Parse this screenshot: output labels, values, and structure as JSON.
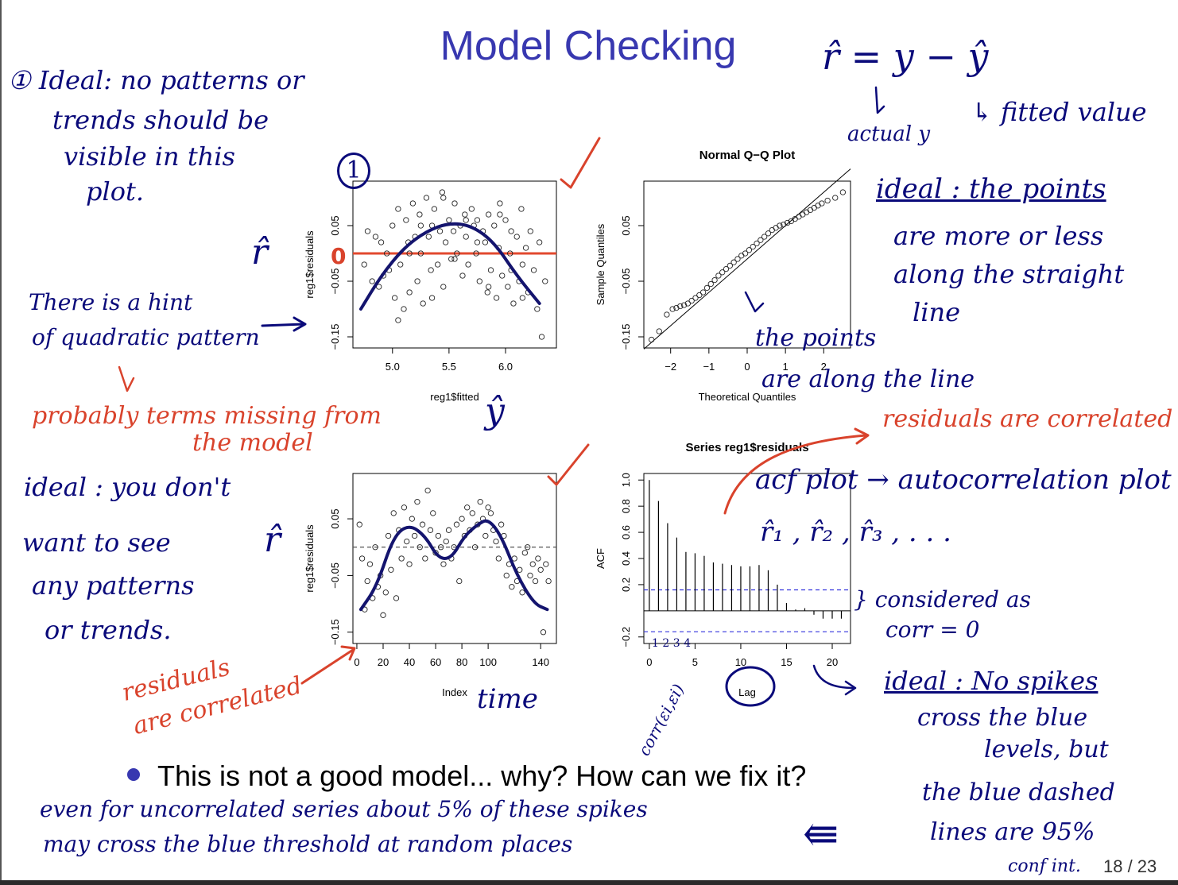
{
  "slide": {
    "title": "Model Checking",
    "bullet": "This is not a good model... why? How can we fix it?",
    "page_number": "18 / 23"
  },
  "annotations": {
    "n1": "① Ideal: no patterns or",
    "n2": "trends should be",
    "n3": "visible in this",
    "n4": "plot.",
    "circled_one": "1",
    "rhat_formula": "r̂ = y − ŷ",
    "fitted_value": "↳ fitted value",
    "actual_y": "actual y",
    "ideal_qq_1": "ideal : the points",
    "ideal_qq_2": "are more or less",
    "ideal_qq_3": "along the straight",
    "ideal_qq_4": "line",
    "rhat1": "r̂",
    "rhat2": "r̂",
    "yhat": "ŷ",
    "zero_label": "0",
    "hint_1": "There is a hint",
    "hint_2": "of quadratic pattern",
    "points_1": "the points",
    "points_2": "are along the line",
    "probably_1": "probably terms missing from",
    "probably_2": "the model",
    "resid_corr_right": "residuals are correlated",
    "ideal_left_1": "ideal : you don't",
    "ideal_left_2": "want to see",
    "ideal_left_3": "any patterns",
    "ideal_left_4": "or trends.",
    "acf_plot": "acf plot → autocorrelation plot",
    "r_seq": "r̂₁ , r̂₂ , r̂₃ , . . .",
    "considered_1": "} considered as",
    "considered_2": "corr = 0",
    "time": "time",
    "resid_corr_left_1": "residuals",
    "resid_corr_left_2": "are correlated",
    "corr_eps": "corr(εi,εi)",
    "lag_small": "1 2 3 4",
    "ideal_acf_1": "ideal : No spikes",
    "ideal_acf_2": "cross the blue",
    "ideal_acf_3": "levels, but",
    "ideal_acf_4": "the blue dashed",
    "ideal_acf_5": "lines are 95%",
    "ideal_acf_6": "conf int.",
    "even_1": "even for uncorrelated series about 5% of these spikes",
    "even_2": "may cross the blue threshold at random places",
    "arrow_left": "⇚"
  },
  "chart_data": [
    {
      "type": "scatter",
      "title": "",
      "xlabel": "reg1$fitted",
      "ylabel": "reg1$residuals",
      "xlim": [
        4.65,
        6.45
      ],
      "ylim": [
        -0.17,
        0.13
      ],
      "xticks": [
        5.0,
        5.5,
        6.0
      ],
      "yticks": [
        -0.15,
        -0.05,
        0.05
      ],
      "xtick_labels": [
        "5.0",
        "5.5",
        "6.0"
      ],
      "ytick_labels": [
        "−0.15",
        "−0.05",
        "0.05"
      ],
      "reference_line": {
        "y": 0,
        "color": "#e2492f"
      },
      "trend_curve": {
        "x": [
          4.72,
          4.9,
          5.1,
          5.3,
          5.5,
          5.7,
          5.9,
          6.1,
          6.3
        ],
        "y": [
          -0.1,
          -0.04,
          0.01,
          0.04,
          0.055,
          0.05,
          0.02,
          -0.04,
          -0.09
        ],
        "color": "#14146e"
      },
      "x": [
        4.75,
        4.78,
        4.82,
        4.85,
        4.88,
        4.9,
        4.92,
        4.95,
        4.97,
        5.0,
        5.02,
        5.05,
        5.07,
        5.1,
        5.12,
        5.14,
        5.15,
        5.18,
        5.2,
        5.22,
        5.24,
        5.25,
        5.27,
        5.3,
        5.32,
        5.34,
        5.35,
        5.37,
        5.4,
        5.42,
        5.44,
        5.45,
        5.47,
        5.5,
        5.52,
        5.54,
        5.55,
        5.57,
        5.6,
        5.62,
        5.64,
        5.65,
        5.67,
        5.7,
        5.72,
        5.74,
        5.75,
        5.77,
        5.8,
        5.82,
        5.84,
        5.85,
        5.87,
        5.9,
        5.92,
        5.94,
        5.95,
        5.97,
        6.0,
        6.02,
        6.04,
        6.05,
        6.07,
        6.1,
        6.12,
        6.14,
        6.15,
        6.18,
        6.2,
        6.22,
        6.25,
        6.28,
        6.3,
        6.32,
        6.35,
        5.05,
        5.15,
        5.25,
        5.35,
        5.45,
        5.55,
        5.65,
        5.75,
        5.85,
        5.95,
        6.05,
        6.15
      ],
      "y": [
        -0.02,
        0.04,
        -0.05,
        0.03,
        -0.06,
        0.02,
        -0.04,
        0.0,
        -0.03,
        0.05,
        -0.08,
        0.08,
        -0.02,
        -0.1,
        0.06,
        0.02,
        -0.07,
        0.09,
        0.03,
        -0.05,
        0.07,
        0.0,
        -0.09,
        0.1,
        0.03,
        -0.03,
        0.05,
        0.08,
        -0.02,
        0.04,
        0.11,
        -0.06,
        0.02,
        0.06,
        -0.01,
        0.04,
        0.09,
        0.0,
        0.05,
        -0.04,
        0.07,
        0.03,
        -0.02,
        0.08,
        0.05,
        0.0,
        0.06,
        -0.05,
        0.04,
        0.02,
        -0.07,
        0.07,
        -0.03,
        0.05,
        -0.08,
        0.01,
        0.09,
        -0.04,
        0.06,
        -0.06,
        0.0,
        0.04,
        -0.09,
        0.03,
        -0.05,
        0.08,
        -0.02,
        0.01,
        -0.07,
        0.04,
        -0.03,
        -0.1,
        0.02,
        -0.15,
        -0.05,
        -0.12,
        0.0,
        0.05,
        -0.08,
        0.1,
        -0.01,
        0.06,
        0.02,
        -0.06,
        0.07,
        -0.03,
        -0.08
      ]
    },
    {
      "type": "scatter",
      "title": "Normal Q−Q Plot",
      "xlabel": "Theoretical Quantiles",
      "ylabel": "Sample Quantiles",
      "xlim": [
        -2.7,
        2.7
      ],
      "ylim": [
        -0.17,
        0.13
      ],
      "xticks": [
        -2,
        -1,
        0,
        1,
        2
      ],
      "yticks": [
        -0.15,
        -0.05,
        0.05
      ],
      "xtick_labels": [
        "−2",
        "−1",
        "0",
        "1",
        "2"
      ],
      "ytick_labels": [
        "−0.15",
        "−0.05",
        "0.05"
      ],
      "reference_line": {
        "x": [
          -2.7,
          2.7
        ],
        "y": [
          -0.172,
          0.152
        ]
      },
      "x": [
        -2.5,
        -2.3,
        -2.1,
        -1.95,
        -1.85,
        -1.75,
        -1.65,
        -1.55,
        -1.45,
        -1.35,
        -1.25,
        -1.15,
        -1.05,
        -0.95,
        -0.85,
        -0.75,
        -0.65,
        -0.55,
        -0.45,
        -0.35,
        -0.25,
        -0.15,
        -0.05,
        0.05,
        0.15,
        0.25,
        0.35,
        0.45,
        0.55,
        0.65,
        0.75,
        0.85,
        0.95,
        1.05,
        1.15,
        1.25,
        1.35,
        1.45,
        1.55,
        1.65,
        1.75,
        1.85,
        1.95,
        2.1,
        2.3,
        2.5
      ],
      "y": [
        -0.155,
        -0.14,
        -0.11,
        -0.1,
        -0.098,
        -0.095,
        -0.093,
        -0.09,
        -0.085,
        -0.08,
        -0.075,
        -0.07,
        -0.062,
        -0.055,
        -0.048,
        -0.04,
        -0.034,
        -0.028,
        -0.022,
        -0.016,
        -0.01,
        -0.004,
        0.0,
        0.006,
        0.012,
        0.018,
        0.024,
        0.03,
        0.036,
        0.042,
        0.046,
        0.05,
        0.052,
        0.055,
        0.058,
        0.062,
        0.066,
        0.07,
        0.074,
        0.078,
        0.082,
        0.086,
        0.09,
        0.095,
        0.1,
        0.11
      ]
    },
    {
      "type": "scatter",
      "title": "",
      "xlabel": "Index",
      "ylabel": "reg1$residuals",
      "xlim": [
        -3,
        152
      ],
      "ylim": [
        -0.17,
        0.13
      ],
      "xticks": [
        0,
        20,
        40,
        60,
        80,
        100,
        140
      ],
      "yticks": [
        -0.15,
        -0.05,
        0.05
      ],
      "xtick_labels": [
        "0",
        "20",
        "40",
        "60",
        "80",
        "100",
        "140"
      ],
      "ytick_labels": [
        "−0.15",
        "−0.05",
        "0.05"
      ],
      "reference_line": {
        "y": 0,
        "dashed": true
      },
      "trend_curve": {
        "x": [
          3,
          15,
          28,
          40,
          52,
          62,
          72,
          82,
          92,
          100,
          110,
          122,
          135,
          145
        ],
        "y": [
          -0.11,
          -0.07,
          0.02,
          0.04,
          0.02,
          -0.02,
          -0.02,
          0.02,
          0.04,
          0.05,
          0.02,
          -0.05,
          -0.1,
          -0.11
        ],
        "color": "#14146e"
      },
      "x": [
        2,
        4,
        6,
        8,
        10,
        12,
        14,
        16,
        18,
        20,
        22,
        24,
        26,
        28,
        30,
        32,
        34,
        36,
        38,
        40,
        42,
        44,
        46,
        48,
        50,
        52,
        54,
        56,
        58,
        60,
        62,
        64,
        66,
        68,
        70,
        72,
        74,
        76,
        78,
        80,
        82,
        84,
        86,
        88,
        90,
        92,
        94,
        96,
        98,
        100,
        102,
        104,
        106,
        108,
        110,
        112,
        114,
        116,
        118,
        120,
        122,
        124,
        126,
        128,
        130,
        132,
        134,
        136,
        138,
        140,
        142,
        144,
        146
      ],
      "y": [
        0.04,
        -0.02,
        -0.11,
        -0.06,
        -0.03,
        -0.09,
        0.0,
        -0.07,
        -0.05,
        -0.12,
        -0.08,
        0.02,
        -0.04,
        0.06,
        -0.09,
        0.03,
        -0.02,
        0.07,
        0.01,
        -0.03,
        0.05,
        0.02,
        0.08,
        0.0,
        0.04,
        -0.02,
        0.1,
        0.03,
        0.06,
        -0.01,
        0.02,
        0.0,
        -0.03,
        0.01,
        0.03,
        -0.02,
        0.0,
        0.04,
        -0.06,
        0.05,
        0.02,
        0.07,
        0.03,
        0.06,
        0.0,
        0.04,
        0.08,
        0.05,
        0.02,
        0.07,
        0.06,
        0.03,
        0.01,
        -0.02,
        0.04,
        0.02,
        -0.05,
        -0.03,
        -0.07,
        -0.02,
        -0.06,
        -0.04,
        -0.08,
        -0.01,
        0.0,
        -0.05,
        -0.03,
        -0.06,
        -0.02,
        -0.04,
        -0.15,
        -0.03,
        -0.06
      ]
    },
    {
      "type": "bar",
      "title": "Series  reg1$residuals",
      "xlabel": "Lag",
      "ylabel": "ACF",
      "xlim": [
        -0.6,
        22
      ],
      "ylim": [
        -0.25,
        1.05
      ],
      "xticks": [
        0,
        5,
        10,
        15,
        20
      ],
      "yticks": [
        -0.2,
        0.2,
        0.4,
        0.6,
        0.8,
        1.0
      ],
      "xtick_labels": [
        "0",
        "5",
        "10",
        "15",
        "20"
      ],
      "ytick_labels": [
        "−0.2",
        "0.2",
        "0.4",
        "0.6",
        "0.8",
        "1.0"
      ],
      "ci_lines": {
        "upper": 0.16,
        "lower": -0.16,
        "color": "#3333dd"
      },
      "x": [
        0,
        1,
        2,
        3,
        4,
        5,
        6,
        7,
        8,
        9,
        10,
        11,
        12,
        13,
        14,
        15,
        16,
        17,
        18,
        19,
        20,
        21
      ],
      "values": [
        1.0,
        0.84,
        0.67,
        0.56,
        0.45,
        0.44,
        0.42,
        0.37,
        0.36,
        0.35,
        0.34,
        0.34,
        0.35,
        0.31,
        0.2,
        0.06,
        0.01,
        0.02,
        -0.03,
        -0.06,
        -0.06,
        -0.06
      ]
    }
  ]
}
